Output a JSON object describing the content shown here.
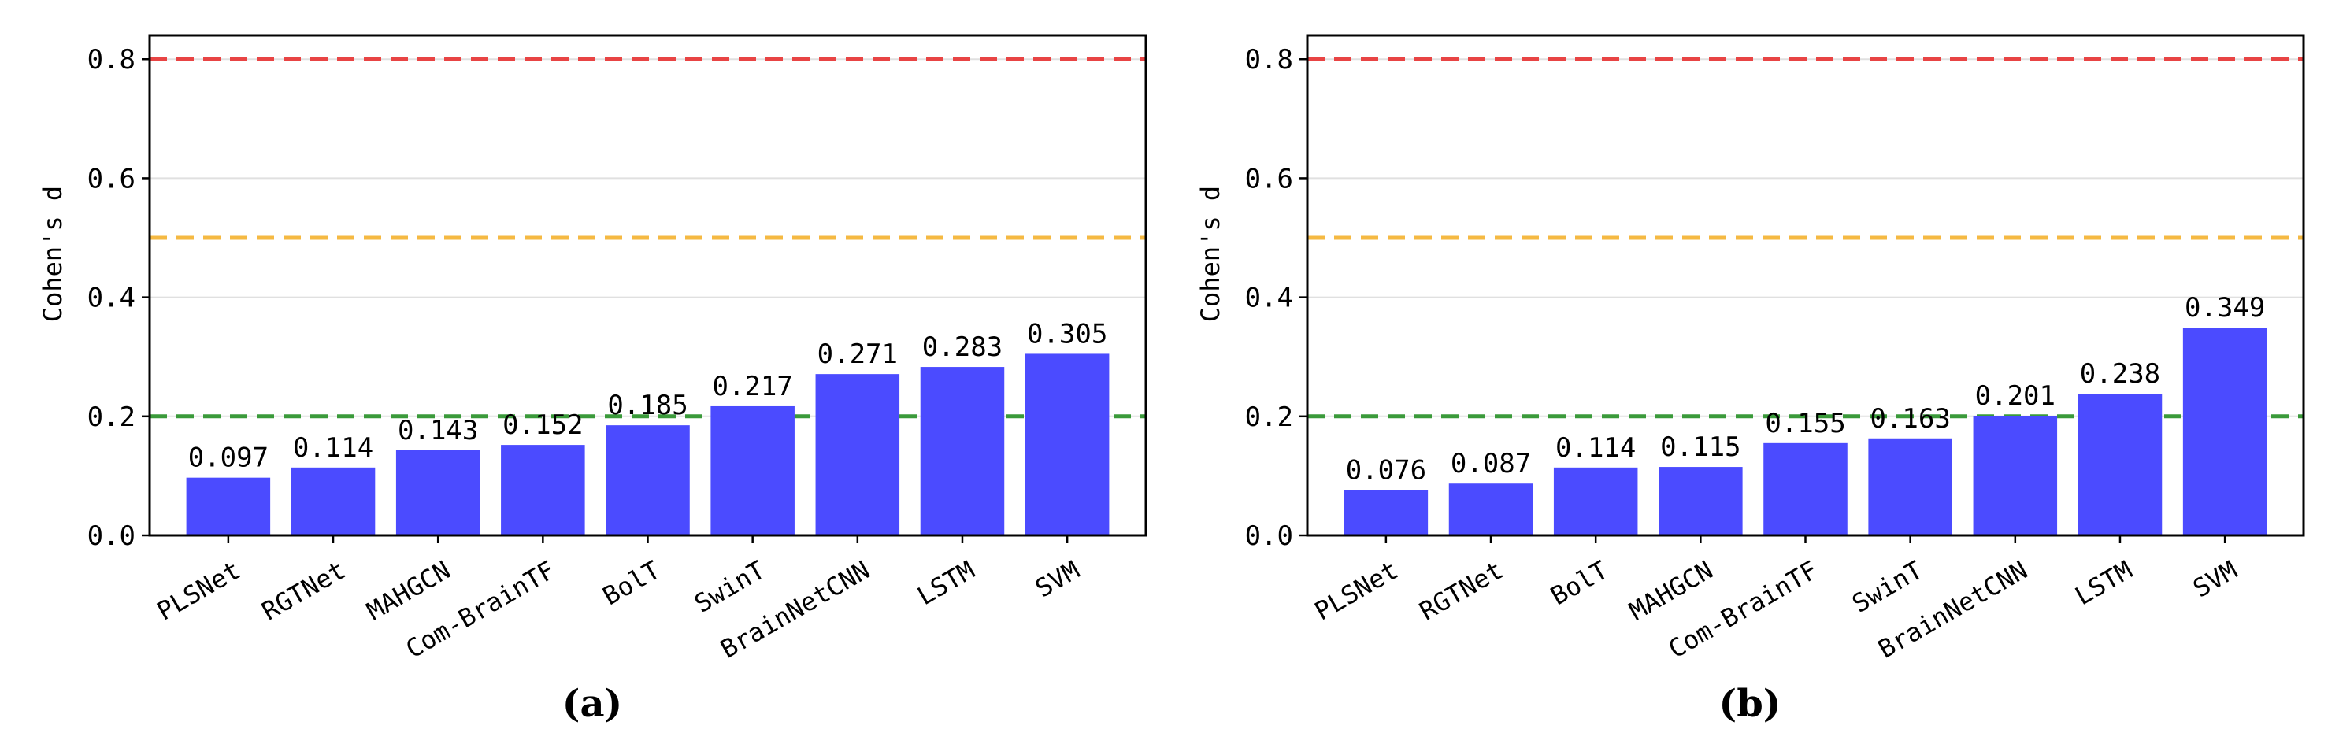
{
  "chart_data": [
    {
      "type": "bar",
      "panel_label": "(a)",
      "ylabel": "Cohen's d",
      "ylim": [
        0,
        0.84
      ],
      "yticks": [
        "0.0",
        "0.2",
        "0.4",
        "0.6",
        "0.8"
      ],
      "categories": [
        "PLSNet",
        "RGTNet",
        "MAHGCN",
        "Com-BrainTF",
        "BolT",
        "SwinT",
        "BrainNetCNN",
        "LSTM",
        "SVM"
      ],
      "values": [
        0.097,
        0.114,
        0.143,
        0.152,
        0.185,
        0.217,
        0.271,
        0.283,
        0.305
      ],
      "value_labels": [
        "0.097",
        "0.114",
        "0.143",
        "0.152",
        "0.185",
        "0.217",
        "0.271",
        "0.283",
        "0.305"
      ],
      "reference_lines": [
        {
          "value": 0.2,
          "color": "#3a9a3a"
        },
        {
          "value": 0.5,
          "color": "#f5b942"
        },
        {
          "value": 0.8,
          "color": "#e84444"
        }
      ],
      "bar_color": "#4b4bff",
      "grid": true
    },
    {
      "type": "bar",
      "panel_label": "(b)",
      "ylabel": "Cohen's d",
      "ylim": [
        0,
        0.84
      ],
      "yticks": [
        "0.0",
        "0.2",
        "0.4",
        "0.6",
        "0.8"
      ],
      "categories": [
        "PLSNet",
        "RGTNet",
        "BolT",
        "MAHGCN",
        "Com-BrainTF",
        "SwinT",
        "BrainNetCNN",
        "LSTM",
        "SVM"
      ],
      "values": [
        0.076,
        0.087,
        0.114,
        0.115,
        0.155,
        0.163,
        0.201,
        0.238,
        0.349
      ],
      "value_labels": [
        "0.076",
        "0.087",
        "0.114",
        "0.115",
        "0.155",
        "0.163",
        "0.201",
        "0.238",
        "0.349"
      ],
      "reference_lines": [
        {
          "value": 0.2,
          "color": "#3a9a3a"
        },
        {
          "value": 0.5,
          "color": "#f5b942"
        },
        {
          "value": 0.8,
          "color": "#e84444"
        }
      ],
      "bar_color": "#4b4bff",
      "grid": true
    }
  ]
}
